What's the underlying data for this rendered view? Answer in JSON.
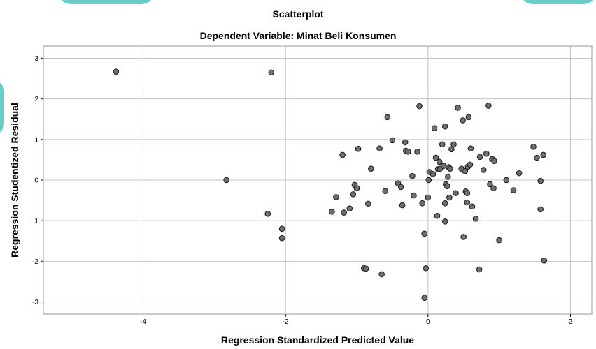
{
  "chart_data": {
    "type": "scatter",
    "title": "Scatterplot",
    "subtitle": "Dependent Variable: Minat Beli Konsumen",
    "xlabel": "Regression Standardized Predicted Value",
    "ylabel": "Regression Studentized Residual",
    "xlim": [
      -5.4,
      2.3
    ],
    "ylim": [
      -3.3,
      3.3
    ],
    "xticks": [
      -4,
      -2,
      0,
      2
    ],
    "yticks": [
      3,
      2,
      1,
      0,
      -1,
      -2,
      -3
    ],
    "grid": true,
    "point_color": "#6e6e6e",
    "point_edge": "#1a1a1a",
    "points": [
      [
        -4.38,
        2.67
      ],
      [
        -2.2,
        2.65
      ],
      [
        -2.83,
        0.0
      ],
      [
        -2.25,
        -0.83
      ],
      [
        -2.05,
        -1.2
      ],
      [
        -2.05,
        -1.43
      ],
      [
        -1.35,
        -0.78
      ],
      [
        -1.29,
        -0.42
      ],
      [
        -1.2,
        0.62
      ],
      [
        -1.18,
        -0.8
      ],
      [
        -1.1,
        -0.7
      ],
      [
        -1.05,
        -0.35
      ],
      [
        -1.03,
        -0.12
      ],
      [
        -1.0,
        -0.2
      ],
      [
        -0.98,
        0.77
      ],
      [
        -0.9,
        -2.17
      ],
      [
        -0.87,
        -2.18
      ],
      [
        -0.84,
        -0.58
      ],
      [
        -0.8,
        0.28
      ],
      [
        -0.68,
        0.78
      ],
      [
        -0.65,
        -2.32
      ],
      [
        -0.6,
        -0.27
      ],
      [
        -0.57,
        1.55
      ],
      [
        -0.5,
        0.98
      ],
      [
        -0.42,
        -0.08
      ],
      [
        -0.38,
        -0.17
      ],
      [
        -0.36,
        -0.62
      ],
      [
        -0.32,
        0.93
      ],
      [
        -0.31,
        0.72
      ],
      [
        -0.28,
        0.7
      ],
      [
        -0.22,
        0.1
      ],
      [
        -0.2,
        -0.38
      ],
      [
        -0.15,
        0.7
      ],
      [
        -0.12,
        1.82
      ],
      [
        -0.08,
        -0.57
      ],
      [
        -0.05,
        -1.32
      ],
      [
        -0.03,
        -2.17
      ],
      [
        0.0,
        -0.43
      ],
      [
        0.01,
        0.0
      ],
      [
        0.02,
        0.2
      ],
      [
        -0.05,
        -2.9
      ],
      [
        0.07,
        0.15
      ],
      [
        0.09,
        1.28
      ],
      [
        0.11,
        0.55
      ],
      [
        0.13,
        -0.88
      ],
      [
        0.14,
        0.27
      ],
      [
        0.16,
        0.45
      ],
      [
        0.17,
        0.28
      ],
      [
        0.2,
        0.88
      ],
      [
        0.22,
        0.35
      ],
      [
        0.24,
        -0.57
      ],
      [
        0.24,
        -1.02
      ],
      [
        0.24,
        1.32
      ],
      [
        0.25,
        -0.1
      ],
      [
        0.27,
        -0.15
      ],
      [
        0.28,
        0.08
      ],
      [
        0.29,
        0.32
      ],
      [
        0.3,
        -0.43
      ],
      [
        0.31,
        0.28
      ],
      [
        0.33,
        0.76
      ],
      [
        0.36,
        0.88
      ],
      [
        0.39,
        -0.32
      ],
      [
        0.42,
        1.78
      ],
      [
        0.47,
        0.28
      ],
      [
        0.49,
        1.47
      ],
      [
        0.5,
        -1.4
      ],
      [
        0.52,
        0.22
      ],
      [
        0.53,
        -0.28
      ],
      [
        0.55,
        -0.32
      ],
      [
        0.55,
        -0.55
      ],
      [
        0.56,
        0.33
      ],
      [
        0.57,
        1.55
      ],
      [
        0.59,
        0.38
      ],
      [
        0.6,
        0.78
      ],
      [
        0.62,
        -0.65
      ],
      [
        0.67,
        -0.95
      ],
      [
        0.72,
        -2.2
      ],
      [
        0.73,
        0.57
      ],
      [
        0.78,
        0.25
      ],
      [
        0.82,
        0.65
      ],
      [
        0.85,
        1.83
      ],
      [
        0.87,
        -0.1
      ],
      [
        0.9,
        0.52
      ],
      [
        0.92,
        -0.2
      ],
      [
        0.93,
        0.47
      ],
      [
        1.0,
        -1.48
      ],
      [
        1.1,
        0.0
      ],
      [
        1.2,
        -0.25
      ],
      [
        1.28,
        0.17
      ],
      [
        1.48,
        0.82
      ],
      [
        1.53,
        0.55
      ],
      [
        1.58,
        -0.02
      ],
      [
        1.58,
        -0.72
      ],
      [
        1.62,
        0.62
      ],
      [
        1.63,
        -1.98
      ]
    ]
  }
}
